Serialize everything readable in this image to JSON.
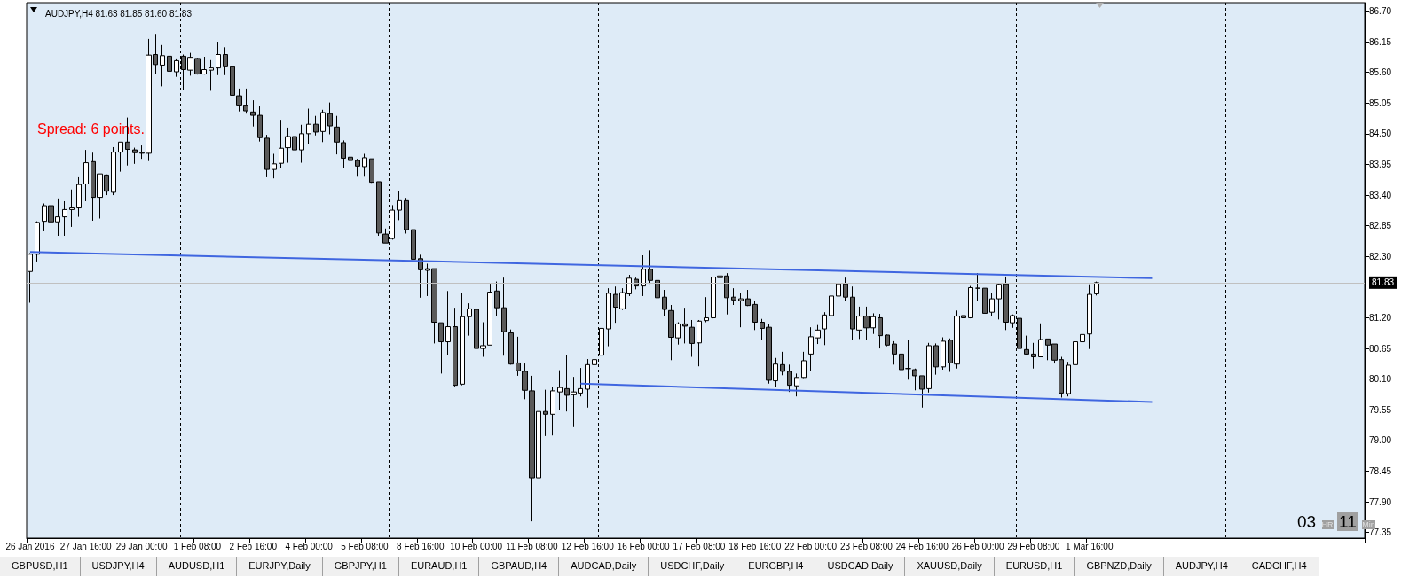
{
  "chart_data": {
    "type": "candlestick",
    "title": "AUDJPY,H4 81.63 81.85 81.60 81.83",
    "categories": [
      "26 Jan 2016",
      null,
      null,
      null,
      null,
      null,
      null,
      null,
      "27 Jan 16:00",
      null,
      null,
      null,
      null,
      null,
      null,
      null,
      "29 Jan 00:00",
      null,
      null,
      null,
      null,
      null,
      null,
      null,
      "1 Feb 08:00",
      null,
      null,
      null,
      null,
      null,
      null,
      null,
      "2 Feb 16:00",
      null,
      null,
      null,
      null,
      null,
      null,
      null,
      "4 Feb 00:00",
      null,
      null,
      null,
      null,
      null,
      null,
      null,
      "5 Feb 08:00",
      null,
      null,
      null,
      null,
      null,
      null,
      null,
      "8 Feb 16:00",
      null,
      null,
      null,
      null,
      null,
      null,
      null,
      "10 Feb 00:00",
      null,
      null,
      null,
      null,
      null,
      null,
      null,
      "11 Feb 08:00",
      null,
      null,
      null,
      null,
      null,
      null,
      null,
      "12 Feb 16:00",
      null,
      null,
      null,
      null,
      null,
      null,
      null,
      "16 Feb 00:00",
      null,
      null,
      null,
      null,
      null,
      null,
      null,
      "17 Feb 08:00",
      null,
      null,
      null,
      null,
      null,
      null,
      null,
      "18 Feb 16:00",
      null,
      null,
      null,
      null,
      null,
      null,
      null,
      "22 Feb 00:00",
      null,
      null,
      null,
      null,
      null,
      null,
      null,
      "23 Feb 08:00",
      null,
      null,
      null,
      null,
      null,
      null,
      null,
      "24 Feb 16:00",
      null,
      null,
      null,
      null,
      null,
      null,
      null,
      "26 Feb 00:00",
      null,
      null,
      null,
      null,
      null,
      null,
      null,
      "29 Feb 08:00",
      null,
      null,
      null,
      null,
      null,
      null,
      null,
      "1 Mar 16:00",
      null,
      null,
      null,
      null,
      null,
      null,
      null,
      null,
      null,
      null,
      null,
      null,
      null,
      null,
      null,
      null,
      null,
      null,
      null,
      null,
      null,
      null,
      null,
      null,
      null,
      null,
      null,
      null,
      null,
      null,
      null,
      null,
      null,
      null,
      null,
      null,
      null,
      null,
      null
    ],
    "ohlc": [
      [
        82.03,
        82.36,
        81.47,
        82.34
      ],
      [
        82.34,
        82.93,
        82.21,
        82.91
      ],
      [
        82.93,
        83.25,
        82.75,
        83.21
      ],
      [
        83.21,
        83.24,
        82.91,
        82.92
      ],
      [
        82.92,
        83.34,
        82.67,
        83.01
      ],
      [
        83.01,
        83.29,
        82.67,
        83.14
      ],
      [
        83.14,
        83.5,
        82.83,
        83.17
      ],
      [
        83.17,
        83.72,
        83.01,
        83.59
      ],
      [
        83.6,
        84.21,
        83.29,
        83.98
      ],
      [
        84,
        84.16,
        82.94,
        83.36
      ],
      [
        83.36,
        83.78,
        82.98,
        83.78
      ],
      [
        83.76,
        83.77,
        83.4,
        83.47
      ],
      [
        83.45,
        84.26,
        83.4,
        84.17
      ],
      [
        84.17,
        84.35,
        83.82,
        84.35
      ],
      [
        84.35,
        84.79,
        83.93,
        84.22
      ],
      [
        84.21,
        84.25,
        83.96,
        84.16
      ],
      [
        84.15,
        84.29,
        84.05,
        84.16
      ],
      [
        84.15,
        86.2,
        84.01,
        85.91
      ],
      [
        85.92,
        86.29,
        85.57,
        85.74
      ],
      [
        85.73,
        86.09,
        85.35,
        85.9
      ],
      [
        85.89,
        86.35,
        85.39,
        85.62
      ],
      [
        85.61,
        85.85,
        85.52,
        85.81
      ],
      [
        85.89,
        85.92,
        85.28,
        85.65
      ],
      [
        85.64,
        85.95,
        85.54,
        85.87
      ],
      [
        85.85,
        85.86,
        85.56,
        85.57
      ],
      [
        85.57,
        85.88,
        85.56,
        85.65
      ],
      [
        85.64,
        85.82,
        85.27,
        85.68
      ],
      [
        85.68,
        86.15,
        85.55,
        85.92
      ],
      [
        85.92,
        86.05,
        85.55,
        85.7
      ],
      [
        85.7,
        85.95,
        85.02,
        85.19
      ],
      [
        85.18,
        85.31,
        84.9,
        85
      ],
      [
        85,
        85.31,
        84.86,
        84.91
      ],
      [
        84.89,
        85.1,
        84.63,
        84.83
      ],
      [
        84.83,
        84.99,
        84.36,
        84.43
      ],
      [
        84.42,
        84.48,
        83.72,
        83.86
      ],
      [
        83.86,
        84.14,
        83.7,
        83.96
      ],
      [
        83.97,
        84.75,
        83.88,
        84.24
      ],
      [
        84.25,
        84.61,
        83.98,
        84.45
      ],
      [
        84.45,
        84.75,
        83.17,
        84.21
      ],
      [
        84.21,
        84.66,
        83.98,
        84.5
      ],
      [
        84.5,
        84.95,
        84.32,
        84.67
      ],
      [
        84.67,
        84.82,
        84.47,
        84.53
      ],
      [
        84.54,
        84.93,
        84.35,
        84.88
      ],
      [
        84.86,
        85.06,
        84.49,
        84.64
      ],
      [
        84.62,
        84.82,
        84.13,
        84.35
      ],
      [
        84.34,
        84.38,
        83.89,
        84.06
      ],
      [
        84.08,
        84.29,
        83.87,
        84.02
      ],
      [
        84.02,
        84.05,
        83.73,
        83.92
      ],
      [
        83.91,
        84.14,
        83.73,
        84.07
      ],
      [
        84.05,
        84.05,
        83.62,
        83.63
      ],
      [
        83.64,
        83.64,
        82.67,
        82.72
      ],
      [
        82.7,
        82.8,
        82.54,
        82.54
      ],
      [
        82.62,
        83.22,
        82.6,
        83.13
      ],
      [
        83.13,
        83.47,
        82.95,
        83.3
      ],
      [
        83.3,
        83.35,
        82.71,
        82.78
      ],
      [
        82.78,
        82.8,
        82.02,
        82.25
      ],
      [
        82.26,
        82.33,
        81.56,
        82.06
      ],
      [
        82.05,
        82.17,
        81.59,
        82.08
      ],
      [
        82.08,
        82.08,
        80.74,
        81.12
      ],
      [
        81.11,
        81.11,
        80.2,
        80.77
      ],
      [
        80.77,
        81.68,
        80.54,
        81.04
      ],
      [
        81.04,
        81.38,
        79.97,
        79.99
      ],
      [
        80.01,
        81.65,
        79.99,
        81.22
      ],
      [
        81.22,
        81.46,
        80.88,
        81.36
      ],
      [
        81.35,
        81.49,
        80.44,
        80.65
      ],
      [
        80.65,
        81.12,
        80.5,
        80.7
      ],
      [
        80.71,
        81.81,
        80.71,
        81.66
      ],
      [
        81.68,
        81.85,
        81.23,
        81.38
      ],
      [
        81.38,
        81.92,
        80.52,
        80.95
      ],
      [
        80.93,
        80.99,
        80.36,
        80.37
      ],
      [
        80.39,
        80.86,
        80.16,
        80.25
      ],
      [
        80.24,
        80.38,
        79.74,
        79.9
      ],
      [
        79.89,
        80.16,
        77.55,
        78.33
      ],
      [
        78.33,
        79.91,
        78.2,
        79.52
      ],
      [
        79.52,
        79.91,
        79.08,
        79.47
      ],
      [
        79.47,
        79.96,
        79.09,
        79.89
      ],
      [
        79.87,
        80.26,
        79.54,
        79.95
      ],
      [
        79.93,
        80.53,
        79.52,
        79.81
      ],
      [
        79.82,
        80.14,
        79.24,
        79.87
      ],
      [
        79.85,
        80.3,
        79.79,
        79.93
      ],
      [
        79.92,
        80.46,
        79.59,
        80.36
      ],
      [
        80.36,
        80.62,
        80.34,
        80.45
      ],
      [
        80.53,
        81.01,
        80.53,
        81.01
      ],
      [
        81,
        81.73,
        80.69,
        81.64
      ],
      [
        81.62,
        81.76,
        81.11,
        81.39
      ],
      [
        81.36,
        81.73,
        81.34,
        81.65
      ],
      [
        81.63,
        81.97,
        81.59,
        81.91
      ],
      [
        81.89,
        81.92,
        81.71,
        81.77
      ],
      [
        81.77,
        82.32,
        81.59,
        82.07
      ],
      [
        82.07,
        82.41,
        81.81,
        81.87
      ],
      [
        81.87,
        82.1,
        81.38,
        81.56
      ],
      [
        81.57,
        81.7,
        81.23,
        81.35
      ],
      [
        81.33,
        81.43,
        80.44,
        80.85
      ],
      [
        80.84,
        81.12,
        80.72,
        81.09
      ],
      [
        81.09,
        81.38,
        80.74,
        81.05
      ],
      [
        81.03,
        81.16,
        80.5,
        80.74
      ],
      [
        80.75,
        81.16,
        80.33,
        81.14
      ],
      [
        81.15,
        81.57,
        81.12,
        81.2
      ],
      [
        81.2,
        81.93,
        81.19,
        81.93
      ],
      [
        81.92,
        81.99,
        81.49,
        81.95
      ],
      [
        81.95,
        82,
        81.26,
        81.56
      ],
      [
        81.57,
        81.73,
        81.43,
        81.52
      ],
      [
        81.51,
        81.65,
        81.03,
        81.54
      ],
      [
        81.54,
        81.7,
        81.41,
        81.42
      ],
      [
        81.44,
        81.5,
        80.98,
        81.12
      ],
      [
        81.12,
        81.18,
        80.8,
        81.01
      ],
      [
        81.03,
        81.09,
        80.02,
        80.08
      ],
      [
        80.07,
        80.48,
        79.96,
        80.37
      ],
      [
        80.36,
        80.59,
        80.17,
        80.24
      ],
      [
        80.24,
        80.36,
        79.87,
        79.99
      ],
      [
        79.98,
        80.2,
        79.79,
        80.13
      ],
      [
        80.13,
        80.59,
        80.12,
        80.43
      ],
      [
        80.55,
        81.03,
        80.24,
        80.86
      ],
      [
        80.84,
        81.07,
        80.73,
        80.98
      ],
      [
        81,
        81.3,
        80.71,
        81.25
      ],
      [
        81.24,
        81.66,
        81.19,
        81.59
      ],
      [
        81.59,
        81.85,
        81.52,
        81.81
      ],
      [
        81.81,
        81.92,
        81.5,
        81.57
      ],
      [
        81.57,
        81.76,
        80.81,
        81
      ],
      [
        80.98,
        81.4,
        80.82,
        81.23
      ],
      [
        81.23,
        81.4,
        80.81,
        81.02
      ],
      [
        81.02,
        81.28,
        80.91,
        81.22
      ],
      [
        81.2,
        81.27,
        80.65,
        80.88
      ],
      [
        80.89,
        80.9,
        80.69,
        80.71
      ],
      [
        80.73,
        80.78,
        80.36,
        80.55
      ],
      [
        80.55,
        80.62,
        80.05,
        80.27
      ],
      [
        80.29,
        80.81,
        80.09,
        80.29
      ],
      [
        80.27,
        80.29,
        79.9,
        80.16
      ],
      [
        80.16,
        80.16,
        79.59,
        79.92
      ],
      [
        79.93,
        80.75,
        79.86,
        80.7
      ],
      [
        80.7,
        80.74,
        80.18,
        80.32
      ],
      [
        80.32,
        80.85,
        80.27,
        80.78
      ],
      [
        80.8,
        80.83,
        80.23,
        80.39
      ],
      [
        80.37,
        81.33,
        80.29,
        81.23
      ],
      [
        81.24,
        81.35,
        80.93,
        81.2
      ],
      [
        81.2,
        81.77,
        81.19,
        81.74
      ],
      [
        81.73,
        82,
        81.5,
        81.73
      ],
      [
        81.73,
        81.73,
        81.28,
        81.28
      ],
      [
        81.3,
        81.65,
        81.23,
        81.54
      ],
      [
        81.54,
        81.81,
        81.17,
        81.8
      ],
      [
        81.81,
        81.94,
        80.98,
        81.12
      ],
      [
        81.11,
        81.26,
        81.02,
        81.24
      ],
      [
        81.19,
        81.22,
        80.64,
        80.65
      ],
      [
        80.63,
        80.88,
        80.53,
        80.55
      ],
      [
        80.55,
        80.75,
        80.29,
        80.5
      ],
      [
        80.5,
        81.1,
        80.5,
        80.81
      ],
      [
        80.82,
        80.82,
        80.44,
        80.71
      ],
      [
        80.73,
        80.73,
        80.38,
        80.44
      ],
      [
        80.45,
        80.5,
        79.77,
        79.85
      ],
      [
        79.84,
        80.41,
        79.79,
        80.35
      ],
      [
        80.36,
        81.28,
        80.36,
        80.77
      ],
      [
        80.77,
        81,
        80.66,
        80.9
      ],
      [
        80.91,
        81.8,
        80.64,
        81.62
      ],
      [
        81.63,
        81.85,
        81.6,
        81.83
      ],
      null,
      null,
      null,
      null,
      null,
      null,
      null,
      null,
      null,
      null,
      null,
      null,
      null,
      null,
      null,
      null,
      null,
      null,
      null,
      null,
      null,
      null,
      null,
      null,
      null,
      null,
      null,
      null,
      null,
      null,
      null,
      null,
      null,
      null,
      null,
      null,
      null,
      null
    ],
    "series": [
      {
        "type": "line",
        "color": "#3f66e0",
        "values": [
          82.38,
          null,
          null,
          null,
          null,
          null,
          null,
          null,
          null,
          null,
          null,
          null,
          null,
          null,
          null,
          null,
          null,
          null,
          null,
          null,
          null,
          null,
          null,
          null,
          null,
          null,
          null,
          null,
          null,
          null,
          null,
          null,
          null,
          null,
          null,
          null,
          null,
          null,
          null,
          null,
          null,
          null,
          null,
          null,
          null,
          null,
          null,
          null,
          null,
          null,
          null,
          null,
          null,
          null,
          null,
          null,
          null,
          null,
          null,
          null,
          null,
          null,
          null,
          null,
          null,
          null,
          null,
          null,
          null,
          null,
          null,
          null,
          null,
          null,
          null,
          null,
          null,
          null,
          null,
          null,
          null,
          null,
          null,
          null,
          null,
          null,
          null,
          null,
          null,
          null,
          null,
          null,
          null,
          null,
          null,
          null,
          null,
          null,
          null,
          null,
          null,
          null,
          null,
          null,
          null,
          null,
          null,
          null,
          null,
          null,
          null,
          null,
          null,
          null,
          null,
          null,
          null,
          null,
          null,
          null,
          null,
          null,
          null,
          null,
          null,
          null,
          null,
          null,
          null,
          null,
          null,
          null,
          null,
          null,
          null,
          null,
          null,
          null,
          null,
          null,
          null,
          null,
          null,
          null,
          null,
          null,
          null,
          null,
          null,
          null,
          null,
          null,
          null,
          null,
          null,
          null,
          null,
          null,
          null,
          null,
          null,
          81.91,
          null,
          null,
          null,
          null,
          null,
          null,
          null,
          null,
          null,
          null,
          null,
          null,
          null,
          null,
          null,
          null,
          null,
          null,
          null,
          null,
          null,
          null,
          null,
          null,
          null,
          null,
          null,
          null,
          null,
          null
        ]
      },
      {
        "type": "line",
        "color": "#3f66e0",
        "values": [
          null,
          null,
          null,
          null,
          null,
          null,
          null,
          null,
          null,
          null,
          null,
          null,
          null,
          null,
          null,
          null,
          null,
          null,
          null,
          null,
          null,
          null,
          null,
          null,
          null,
          null,
          null,
          null,
          null,
          null,
          null,
          null,
          null,
          null,
          null,
          null,
          null,
          null,
          null,
          null,
          null,
          null,
          null,
          null,
          null,
          null,
          null,
          null,
          null,
          null,
          null,
          null,
          null,
          null,
          null,
          null,
          null,
          null,
          null,
          null,
          null,
          null,
          null,
          null,
          null,
          null,
          null,
          null,
          null,
          null,
          null,
          null,
          null,
          null,
          null,
          null,
          null,
          null,
          null,
          80.02,
          null,
          null,
          null,
          null,
          null,
          null,
          null,
          null,
          null,
          null,
          null,
          null,
          null,
          null,
          null,
          null,
          null,
          null,
          null,
          null,
          null,
          null,
          null,
          null,
          null,
          null,
          null,
          null,
          null,
          null,
          null,
          null,
          null,
          null,
          null,
          null,
          null,
          null,
          null,
          null,
          null,
          null,
          null,
          null,
          null,
          null,
          null,
          null,
          null,
          null,
          null,
          null,
          null,
          null,
          null,
          null,
          null,
          null,
          null,
          null,
          null,
          null,
          null,
          null,
          null,
          null,
          null,
          null,
          null,
          null,
          null,
          null,
          null,
          null,
          null,
          null,
          null,
          null,
          null,
          null,
          null,
          79.69,
          null,
          null,
          null,
          null,
          null,
          null,
          null,
          null,
          null,
          null,
          null,
          null,
          null,
          null,
          null,
          null,
          null,
          null,
          null,
          null,
          null,
          null,
          null,
          null,
          null,
          null,
          null,
          null,
          null,
          null
        ]
      }
    ],
    "ylim": [
      77.25,
      86.85
    ],
    "yticks": [
      {
        "value": 86.7,
        "label": "86.70"
      },
      86.15,
      {
        "value": 85.6,
        "label": "85.60"
      },
      85.05,
      {
        "value": 84.5,
        "label": "84.50"
      },
      83.95,
      {
        "value": 83.4,
        "label": "83.40"
      },
      82.85,
      {
        "value": 82.3,
        "label": "82.30"
      },
      {
        "value": 81.2,
        "label": "81.20"
      },
      80.65,
      {
        "value": 80.1,
        "label": "80.10"
      },
      79.55,
      {
        "value": 79,
        "label": "79.00"
      },
      78.45,
      {
        "value": 77.9,
        "label": "77.90"
      },
      77.35
    ],
    "grid": "x",
    "ref_lines": [
      {
        "axis": "y",
        "value": 81.83,
        "label": "81.83",
        "color": "#c0c0c0"
      }
    ],
    "annotations": [
      "Spread: 6 points.",
      "03 HR 11 Min",
      "GBPUSD,H1",
      "USDJPY,H4",
      "AUDUSD,H1",
      "EURJPY,Daily",
      "GBPJPY,H1",
      "EURAUD,H1",
      "GBPAUD,H4",
      "AUDCAD,Daily",
      "USDCHF,Daily",
      "EURGBP,H4",
      "USDCAD,Daily",
      "XAUUSD,Daily",
      "EURUSD,H1",
      "GBPNZD,Daily",
      "AUDJPY,H4",
      "CADCHF,H4"
    ]
  }
}
